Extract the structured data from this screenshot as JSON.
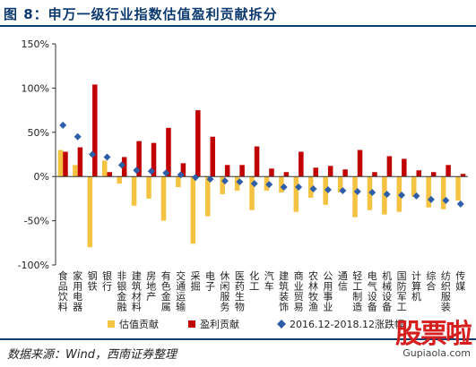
{
  "header": {
    "title": "图 8：申万一级行业指数估值盈利贡献拆分"
  },
  "footer": {
    "source": "数据来源：Wind，西南证券整理"
  },
  "watermark": {
    "text": "股票啦",
    "url": "Gupiaola.com"
  },
  "colors": {
    "valuation": "#f5c342",
    "earnings": "#c00000",
    "marker": "#2e5ea8",
    "axis": "#333333"
  },
  "chart_data": {
    "type": "bar",
    "ylim": [
      -100,
      150
    ],
    "yticks": [
      "150%",
      "100%",
      "50%",
      "0%",
      "-50%",
      "-100%"
    ],
    "ytick_values": [
      150,
      100,
      50,
      0,
      -50,
      -100
    ],
    "categories": [
      "食品饮料",
      "家用电器",
      "钢铁",
      "银行",
      "非银金融",
      "建筑材料",
      "房地产",
      "有色金属",
      "交通运输",
      "采掘",
      "电子",
      "休闲服务",
      "医药生物",
      "化工",
      "汽车",
      "建筑装饰",
      "商业贸易",
      "农林牧渔",
      "公用事业",
      "通信",
      "轻工制造",
      "电气设备",
      "机械设备",
      "国防军工",
      "计算机",
      "综合",
      "纺织服装",
      "传媒"
    ],
    "series": [
      {
        "name": "估值贡献",
        "kind": "bar",
        "values": [
          30,
          13,
          -80,
          18,
          -8,
          -33,
          -25,
          -50,
          -12,
          -76,
          -45,
          -20,
          -16,
          -38,
          -16,
          -18,
          -40,
          -24,
          -32,
          -18,
          -46,
          -38,
          -43,
          -40,
          -23,
          -35,
          -37,
          -27
        ]
      },
      {
        "name": "盈利贡献",
        "kind": "bar",
        "values": [
          28,
          33,
          104,
          5,
          22,
          40,
          38,
          55,
          15,
          75,
          45,
          13,
          13,
          34,
          9,
          5,
          28,
          10,
          12,
          8,
          30,
          5,
          23,
          20,
          7,
          5,
          13,
          3
        ]
      },
      {
        "name": "2016.12-2018.12涨跌幅",
        "kind": "marker",
        "values": [
          58,
          45,
          25,
          22,
          13,
          7,
          6,
          4,
          2,
          -1,
          -3,
          -5,
          -6,
          -8,
          -9,
          -12,
          -12,
          -14,
          -15,
          -16,
          -17,
          -18,
          -20,
          -21,
          -22,
          -26,
          -27,
          -31
        ]
      }
    ],
    "legend": {
      "placement": "bottom",
      "labels": [
        "估值贡献",
        "盈利贡献",
        "2016.12-2018.12涨跌幅"
      ]
    },
    "grid": false
  }
}
